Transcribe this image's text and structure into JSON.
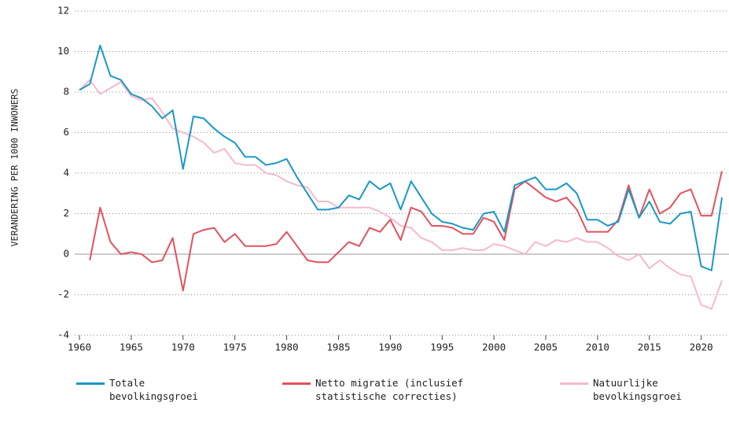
{
  "chart_data": {
    "type": "line",
    "y_label": "VERANDERING PER 1000 INWONERS",
    "x": [
      1960,
      1961,
      1962,
      1963,
      1964,
      1965,
      1966,
      1967,
      1968,
      1969,
      1970,
      1971,
      1972,
      1973,
      1974,
      1975,
      1976,
      1977,
      1978,
      1979,
      1980,
      1981,
      1982,
      1983,
      1984,
      1985,
      1986,
      1987,
      1988,
      1989,
      1990,
      1991,
      1992,
      1993,
      1994,
      1995,
      1996,
      1997,
      1998,
      1999,
      2000,
      2001,
      2002,
      2003,
      2004,
      2005,
      2006,
      2007,
      2008,
      2009,
      2010,
      2011,
      2012,
      2013,
      2014,
      2015,
      2016,
      2017,
      2018,
      2019,
      2020,
      2021,
      2022
    ],
    "series": [
      {
        "name": "Totale bevolkingsgroei",
        "color": "#1a97c7",
        "values": [
          8.1,
          8.4,
          10.3,
          8.8,
          8.6,
          7.9,
          7.7,
          7.3,
          6.7,
          7.1,
          4.2,
          6.8,
          6.7,
          6.2,
          5.8,
          5.5,
          4.8,
          4.8,
          4.4,
          4.5,
          4.7,
          3.8,
          3.0,
          2.2,
          2.2,
          2.3,
          2.9,
          2.7,
          3.6,
          3.2,
          3.5,
          2.2,
          3.6,
          2.8,
          2.0,
          1.6,
          1.5,
          1.3,
          1.2,
          2.0,
          2.1,
          1.1,
          3.4,
          3.6,
          3.8,
          3.2,
          3.2,
          3.5,
          3.0,
          1.7,
          1.7,
          1.4,
          1.6,
          3.2,
          1.8,
          2.6,
          1.6,
          1.5,
          2.0,
          2.1,
          -0.6,
          -0.8,
          2.8
        ]
      },
      {
        "name": "Netto migratie (inclusief statistische correcties)",
        "color": "#e3515f",
        "values": [
          null,
          -0.3,
          2.3,
          0.6,
          0.0,
          0.1,
          0.0,
          -0.4,
          -0.3,
          0.8,
          -1.8,
          1.0,
          1.2,
          1.3,
          0.6,
          1.0,
          0.4,
          0.4,
          0.4,
          0.5,
          1.1,
          0.4,
          -0.3,
          -0.4,
          -0.4,
          0.1,
          0.6,
          0.4,
          1.3,
          1.1,
          1.7,
          0.7,
          2.3,
          2.1,
          1.4,
          1.4,
          1.3,
          1.0,
          1.0,
          1.8,
          1.6,
          0.7,
          3.2,
          3.6,
          3.2,
          2.8,
          2.6,
          2.8,
          2.2,
          1.1,
          1.1,
          1.1,
          1.7,
          3.4,
          1.8,
          3.2,
          2.0,
          2.3,
          3.0,
          3.2,
          1.9,
          1.9,
          4.1
        ]
      },
      {
        "name": "Natuurlijke bevolkingsgroei",
        "color": "#f7b9cc",
        "values": [
          8.1,
          8.6,
          7.9,
          8.2,
          8.5,
          7.8,
          7.6,
          7.7,
          7.0,
          6.2,
          6.0,
          5.8,
          5.5,
          5.0,
          5.2,
          4.5,
          4.4,
          4.4,
          4.0,
          3.9,
          3.6,
          3.4,
          3.3,
          2.6,
          2.6,
          2.3,
          2.3,
          2.3,
          2.3,
          2.1,
          1.8,
          1.4,
          1.3,
          0.8,
          0.6,
          0.2,
          0.2,
          0.3,
          0.2,
          0.2,
          0.5,
          0.4,
          0.2,
          0.0,
          0.6,
          0.4,
          0.7,
          0.6,
          0.8,
          0.6,
          0.6,
          0.3,
          -0.1,
          -0.3,
          0.0,
          -0.7,
          -0.3,
          -0.7,
          -1.0,
          -1.1,
          -2.5,
          -2.7,
          -1.3
        ]
      }
    ],
    "xlim": [
      1960,
      2022
    ],
    "xticks": [
      1960,
      1965,
      1970,
      1975,
      1980,
      1985,
      1990,
      1995,
      2000,
      2005,
      2010,
      2015,
      2020
    ],
    "ylim": [
      -4,
      12
    ],
    "yticks": [
      -4,
      -2,
      0,
      2,
      4,
      6,
      8,
      10,
      12
    ],
    "grid": true
  }
}
